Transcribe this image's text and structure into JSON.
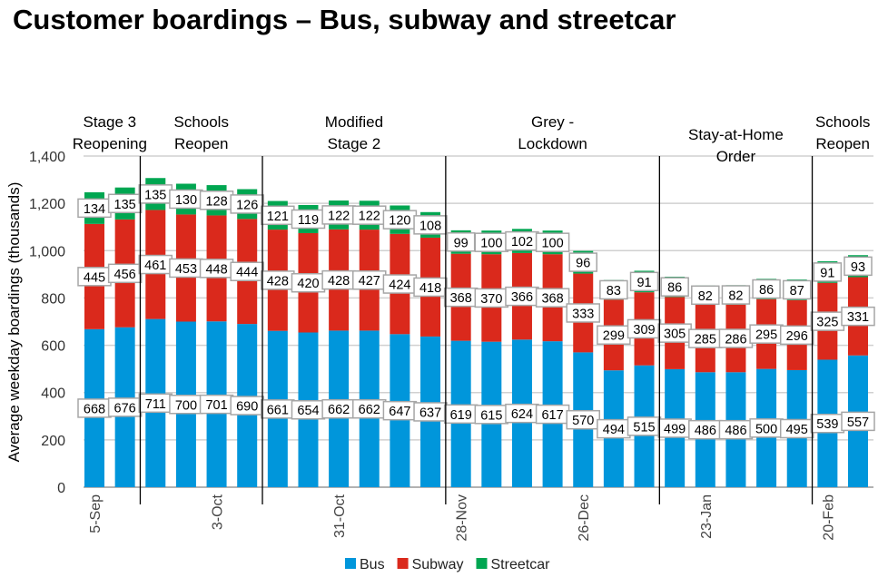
{
  "chart_data": {
    "type": "bar",
    "stacked": true,
    "title": "Customer boardings – Bus, subway and streetcar",
    "ylabel": "Average weekday boardings (thousands)",
    "xlabel": "",
    "ylim": [
      0,
      1400
    ],
    "yticks": [
      "0",
      "200",
      "400",
      "600",
      "800",
      "1,000",
      "1,200",
      "1,400"
    ],
    "grid": true,
    "legend_placement": "bottom",
    "xtick_labels": [
      {
        "index": 0,
        "label": "5-Sep"
      },
      {
        "index": 4,
        "label": "3-Oct"
      },
      {
        "index": 8,
        "label": "31-Oct"
      },
      {
        "index": 12,
        "label": "28-Nov"
      },
      {
        "index": 16,
        "label": "26-Dec"
      },
      {
        "index": 20,
        "label": "23-Jan"
      },
      {
        "index": 24,
        "label": "20-Feb"
      }
    ],
    "series": [
      {
        "name": "Bus",
        "color": "#0096DB",
        "values": [
          668,
          676,
          711,
          700,
          701,
          690,
          661,
          654,
          662,
          662,
          647,
          637,
          619,
          615,
          624,
          617,
          570,
          494,
          515,
          499,
          486,
          486,
          500,
          495,
          539,
          557
        ]
      },
      {
        "name": "Subway",
        "color": "#DA291C",
        "values": [
          445,
          456,
          461,
          453,
          448,
          444,
          428,
          420,
          428,
          427,
          424,
          418,
          368,
          370,
          366,
          368,
          333,
          299,
          309,
          305,
          285,
          286,
          295,
          296,
          325,
          331
        ]
      },
      {
        "name": "Streetcar",
        "color": "#00A651",
        "values": [
          134,
          135,
          135,
          130,
          128,
          126,
          121,
          119,
          122,
          122,
          120,
          108,
          99,
          100,
          102,
          100,
          96,
          83,
          91,
          86,
          82,
          82,
          86,
          87,
          91,
          93
        ]
      }
    ],
    "phases": [
      {
        "lines": [
          "Stage 3",
          "Reopening"
        ],
        "start": 0,
        "end": 1
      },
      {
        "lines": [
          "Schools",
          "Reopen"
        ],
        "start": 2,
        "end": 5
      },
      {
        "lines": [
          "Modified",
          "Stage 2"
        ],
        "start": 6,
        "end": 11
      },
      {
        "lines": [
          "Grey -",
          "Lockdown"
        ],
        "start": 12,
        "end": 18
      },
      {
        "lines": [
          "Stay-at-Home",
          "Order"
        ],
        "start": 19,
        "end": 23
      },
      {
        "lines": [
          "Schools",
          "Reopen"
        ],
        "start": 24,
        "end": 25
      }
    ]
  }
}
